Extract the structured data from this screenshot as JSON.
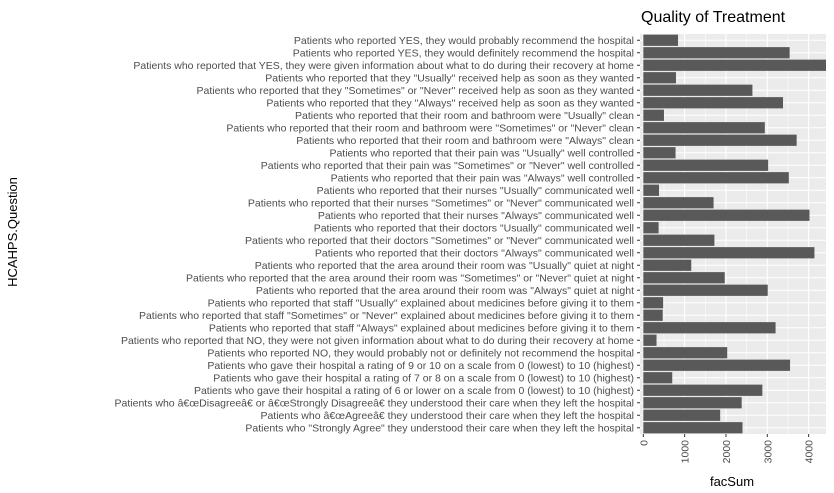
{
  "chart_data": {
    "type": "bar",
    "orientation": "horizontal",
    "title": "Quality of Treatment",
    "xlabel": "facSum",
    "ylabel": "HCAHPS.Question",
    "xlim": [
      -80,
      4420
    ],
    "xticks": [
      0,
      1000,
      2000,
      3000,
      4000
    ],
    "xtick_labels": [
      "0",
      "1000",
      "2000",
      "3000",
      "4000"
    ],
    "grid": true,
    "colors": {
      "panel": "#ebebeb",
      "grid_major": "#ffffff",
      "bar": "#595959",
      "text": "#4d4d4d"
    },
    "categories": [
      "Patients who reported YES, they would probably recommend the hospital",
      "Patients who reported YES, they would definitely recommend the hospital",
      "Patients who reported that YES, they were given information about what to do during their recovery at home",
      "Patients who reported that they \"Usually\" received help as soon as they wanted",
      "Patients who reported that they \"Sometimes\" or \"Never\" received help as soon as they wanted",
      "Patients who reported that they \"Always\" received help as soon as they wanted",
      "Patients who reported that their room and bathroom were \"Usually\" clean",
      "Patients who reported that their room and bathroom were \"Sometimes\" or \"Never\" clean",
      "Patients who reported that their room and bathroom were \"Always\" clean",
      "Patients who reported that their pain was \"Usually\" well controlled",
      "Patients who reported that their pain was \"Sometimes\" or \"Never\" well controlled",
      "Patients who reported that their pain was \"Always\" well controlled",
      "Patients who reported that their nurses \"Usually\" communicated well",
      "Patients who reported that their nurses \"Sometimes\" or \"Never\" communicated well",
      "Patients who reported that their nurses \"Always\" communicated well",
      "Patients who reported that their doctors \"Usually\" communicated well",
      "Patients who reported that their doctors \"Sometimes\" or \"Never\" communicated well",
      "Patients who reported that their doctors \"Always\" communicated well",
      "Patients who reported that the area around their room was \"Usually\" quiet at night",
      "Patients who reported that the area around their room was \"Sometimes\" or \"Never\" quiet at night",
      "Patients who reported that the area around their room was \"Always\" quiet at night",
      "Patients who reported that staff \"Usually\" explained about medicines before giving it to them",
      "Patients who reported that staff \"Sometimes\" or \"Never\" explained about medicines before giving it to them",
      "Patients who reported that staff \"Always\" explained about medicines before giving it to them",
      "Patients who reported that NO, they were not given information about what to do during their recovery at home",
      "Patients who reported NO, they would probably not or definitely not recommend the hospital",
      "Patients who gave their hospital a rating of 9 or 10 on a scale from 0 (lowest) to 10 (highest)",
      "Patients who gave their hospital a rating of 7 or 8 on a scale from 0 (lowest) to 10 (highest)",
      "Patients who gave their hospital a rating of 6 or lower on a scale from 0 (lowest) to 10 (highest)",
      "Patients who â€œDisagreeâ€ or â€œStrongly Disagreeâ€ they understood their care when they left the hospital",
      "Patients who â€œAgreeâ€ they understood their care when they left the hospital",
      "Patients who \"Strongly Agree\" they understood their care when they left the hospital"
    ],
    "values": [
      840,
      3540,
      4420,
      790,
      2640,
      3380,
      500,
      2940,
      3710,
      780,
      3020,
      3520,
      380,
      1700,
      4020,
      370,
      1720,
      4140,
      1160,
      1970,
      3010,
      480,
      470,
      3200,
      320,
      2030,
      3550,
      700,
      2880,
      2380,
      1860,
      2400
    ]
  }
}
